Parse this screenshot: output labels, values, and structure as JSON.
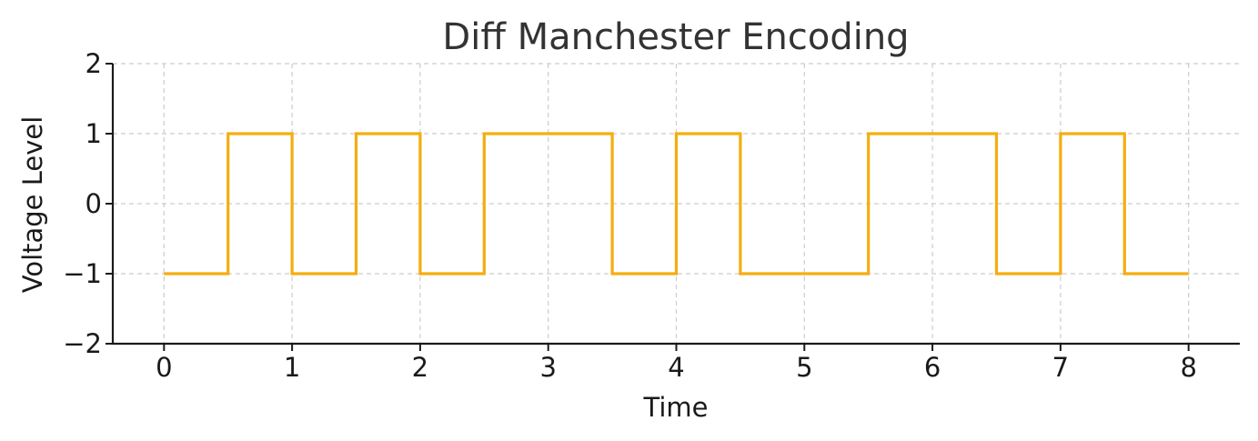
{
  "chart_data": {
    "type": "line",
    "step": "post",
    "title": "Diff Manchester Encoding",
    "xlabel": "Time",
    "ylabel": "Voltage Level",
    "xlim": [
      -0.4,
      8.4
    ],
    "ylim": [
      -2,
      2
    ],
    "xticks": [
      0,
      1,
      2,
      3,
      4,
      5,
      6,
      7,
      8
    ],
    "xtick_labels": [
      "0",
      "1",
      "2",
      "3",
      "4",
      "5",
      "6",
      "7",
      "8"
    ],
    "yticks": [
      2,
      1,
      0,
      -1,
      -2
    ],
    "ytick_labels": [
      "2",
      "1",
      "0",
      "−1",
      "−2"
    ],
    "grid": true,
    "series": [
      {
        "color": "#f5ad0f",
        "x": [
          0,
          0.5,
          1,
          1.5,
          2,
          2.5,
          3,
          3.5,
          4,
          4.5,
          5,
          5.5,
          6,
          6.5,
          7,
          7.5,
          8
        ],
        "y": [
          -1,
          1,
          -1,
          1,
          -1,
          1,
          1,
          -1,
          1,
          -1,
          -1,
          1,
          1,
          -1,
          1,
          -1,
          -1
        ]
      }
    ]
  }
}
